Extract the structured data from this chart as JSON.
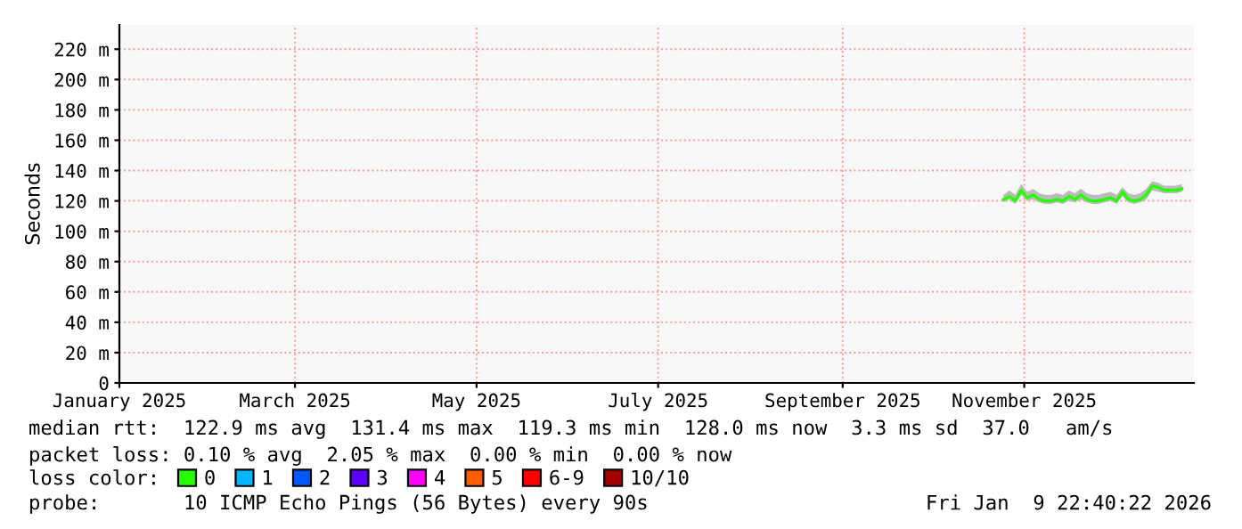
{
  "chart_data": {
    "type": "line",
    "ylabel": "Seconds",
    "x": [
      "2025-10-25",
      "2025-10-27",
      "2025-10-29",
      "2025-10-31",
      "2025-11-02",
      "2025-11-04",
      "2025-11-06",
      "2025-11-08",
      "2025-11-10",
      "2025-11-12",
      "2025-11-14",
      "2025-11-16",
      "2025-11-18",
      "2025-11-20",
      "2025-11-22",
      "2025-11-24",
      "2025-11-26",
      "2025-11-28",
      "2025-11-30",
      "2025-12-02",
      "2025-12-04",
      "2025-12-06",
      "2025-12-08",
      "2025-12-10",
      "2025-12-12",
      "2025-12-14",
      "2025-12-16",
      "2025-12-18",
      "2025-12-20",
      "2025-12-22",
      "2025-12-24"
    ],
    "series": [
      {
        "name": "0",
        "color": "#26ff00",
        "values": [
          121,
          123,
          120,
          127,
          122,
          124,
          121,
          120,
          120,
          121,
          120,
          123,
          121,
          124,
          121,
          120,
          120,
          121,
          122,
          120,
          126,
          121,
          120,
          121,
          124,
          130,
          129,
          127,
          127,
          127,
          128
        ],
        "lower": [
          119,
          121,
          118,
          124,
          120,
          121,
          119,
          118,
          118,
          119,
          118,
          120,
          119,
          121,
          119,
          118,
          118,
          119,
          120,
          118,
          123,
          119,
          118,
          119,
          121,
          127,
          126,
          125,
          125,
          125,
          126
        ],
        "upper": [
          124,
          127,
          124,
          131,
          126,
          128,
          125,
          124,
          124,
          125,
          124,
          127,
          125,
          128,
          125,
          124,
          124,
          125,
          126,
          124,
          129,
          125,
          124,
          125,
          128,
          133,
          132,
          130,
          130,
          130,
          131
        ]
      },
      {
        "name": "1",
        "color": "#00b8ff",
        "values": [
          null,
          null,
          null,
          null,
          null,
          null,
          null,
          null,
          null,
          null,
          null,
          null,
          null,
          null,
          null,
          null,
          null,
          null,
          null,
          null,
          null,
          null,
          null,
          null,
          null,
          null,
          null,
          null,
          null,
          null,
          null
        ]
      },
      {
        "name": "2",
        "color": "#0059ff",
        "values": [
          null,
          null,
          null,
          null,
          null,
          null,
          null,
          null,
          null,
          null,
          null,
          null,
          null,
          null,
          null,
          null,
          null,
          null,
          null,
          null,
          null,
          null,
          null,
          null,
          null,
          null,
          null,
          null,
          null,
          null,
          null
        ]
      },
      {
        "name": "3",
        "color": "#5e00ff",
        "values": [
          null,
          null,
          null,
          null,
          null,
          null,
          null,
          null,
          null,
          null,
          null,
          null,
          null,
          null,
          null,
          null,
          null,
          null,
          null,
          null,
          null,
          null,
          null,
          null,
          null,
          null,
          null,
          null,
          null,
          null,
          null
        ]
      },
      {
        "name": "4",
        "color": "#ff00fe",
        "values": [
          null,
          null,
          null,
          null,
          null,
          null,
          null,
          null,
          null,
          null,
          null,
          null,
          null,
          null,
          null,
          null,
          null,
          null,
          null,
          null,
          null,
          null,
          null,
          null,
          null,
          null,
          null,
          null,
          null,
          null,
          null
        ]
      },
      {
        "name": "5",
        "color": "#ff5e00",
        "values": [
          null,
          null,
          null,
          null,
          null,
          null,
          null,
          null,
          null,
          null,
          null,
          null,
          null,
          null,
          null,
          null,
          null,
          null,
          null,
          null,
          null,
          null,
          null,
          null,
          null,
          null,
          null,
          null,
          null,
          null,
          null
        ]
      },
      {
        "name": "6-9",
        "color": "#ff0000",
        "values": [
          null,
          null,
          null,
          null,
          null,
          null,
          null,
          null,
          null,
          null,
          null,
          null,
          null,
          null,
          null,
          null,
          null,
          null,
          null,
          null,
          null,
          null,
          null,
          null,
          null,
          null,
          null,
          null,
          null,
          null,
          null
        ]
      },
      {
        "name": "10/10",
        "color": "#a10000",
        "values": [
          null,
          null,
          null,
          null,
          null,
          null,
          null,
          null,
          null,
          null,
          null,
          null,
          null,
          null,
          null,
          null,
          null,
          null,
          null,
          null,
          null,
          null,
          null,
          null,
          null,
          null,
          null,
          null,
          null,
          null,
          null
        ]
      }
    ],
    "xlim": [
      "2025-01-01",
      "2025-12-28"
    ],
    "xticks": [
      {
        "value": "2025-01-01",
        "label": "January 2025"
      },
      {
        "value": "2025-03-01",
        "label": "March 2025"
      },
      {
        "value": "2025-05-01",
        "label": "May 2025"
      },
      {
        "value": "2025-07-01",
        "label": "July 2025"
      },
      {
        "value": "2025-09-01",
        "label": "September 2025"
      },
      {
        "value": "2025-11-01",
        "label": "November 2025"
      }
    ],
    "ylim": [
      0,
      236
    ],
    "yticks": [
      0,
      {
        "value": 20,
        "label": "20 m"
      },
      {
        "value": 40,
        "label": "40 m"
      },
      {
        "value": 60,
        "label": "60 m"
      },
      {
        "value": 80,
        "label": "80 m"
      },
      {
        "value": 100,
        "label": "100 m"
      },
      {
        "value": 120,
        "label": "120 m"
      },
      {
        "value": 140,
        "label": "140 m"
      },
      {
        "value": 160,
        "label": "160 m"
      },
      {
        "value": 180,
        "label": "180 m"
      },
      {
        "value": 200,
        "label": "200 m"
      },
      {
        "value": 220,
        "label": "220 m"
      }
    ],
    "grid": true,
    "legend": "bottom",
    "legend_title": "loss color:",
    "annotations": [
      "median rtt:  122.9 ms avg  131.4 ms max  119.3 ms min  128.0 ms now  3.3 ms sd  37.0   am/s",
      "packet loss: 0.10 % avg  2.05 % max  0.00 % min  0.00 % now",
      "probe:       10 ICMP Echo Pings (56 Bytes) every 90s",
      "Fri Jan  9 22:40:22 2026"
    ]
  }
}
